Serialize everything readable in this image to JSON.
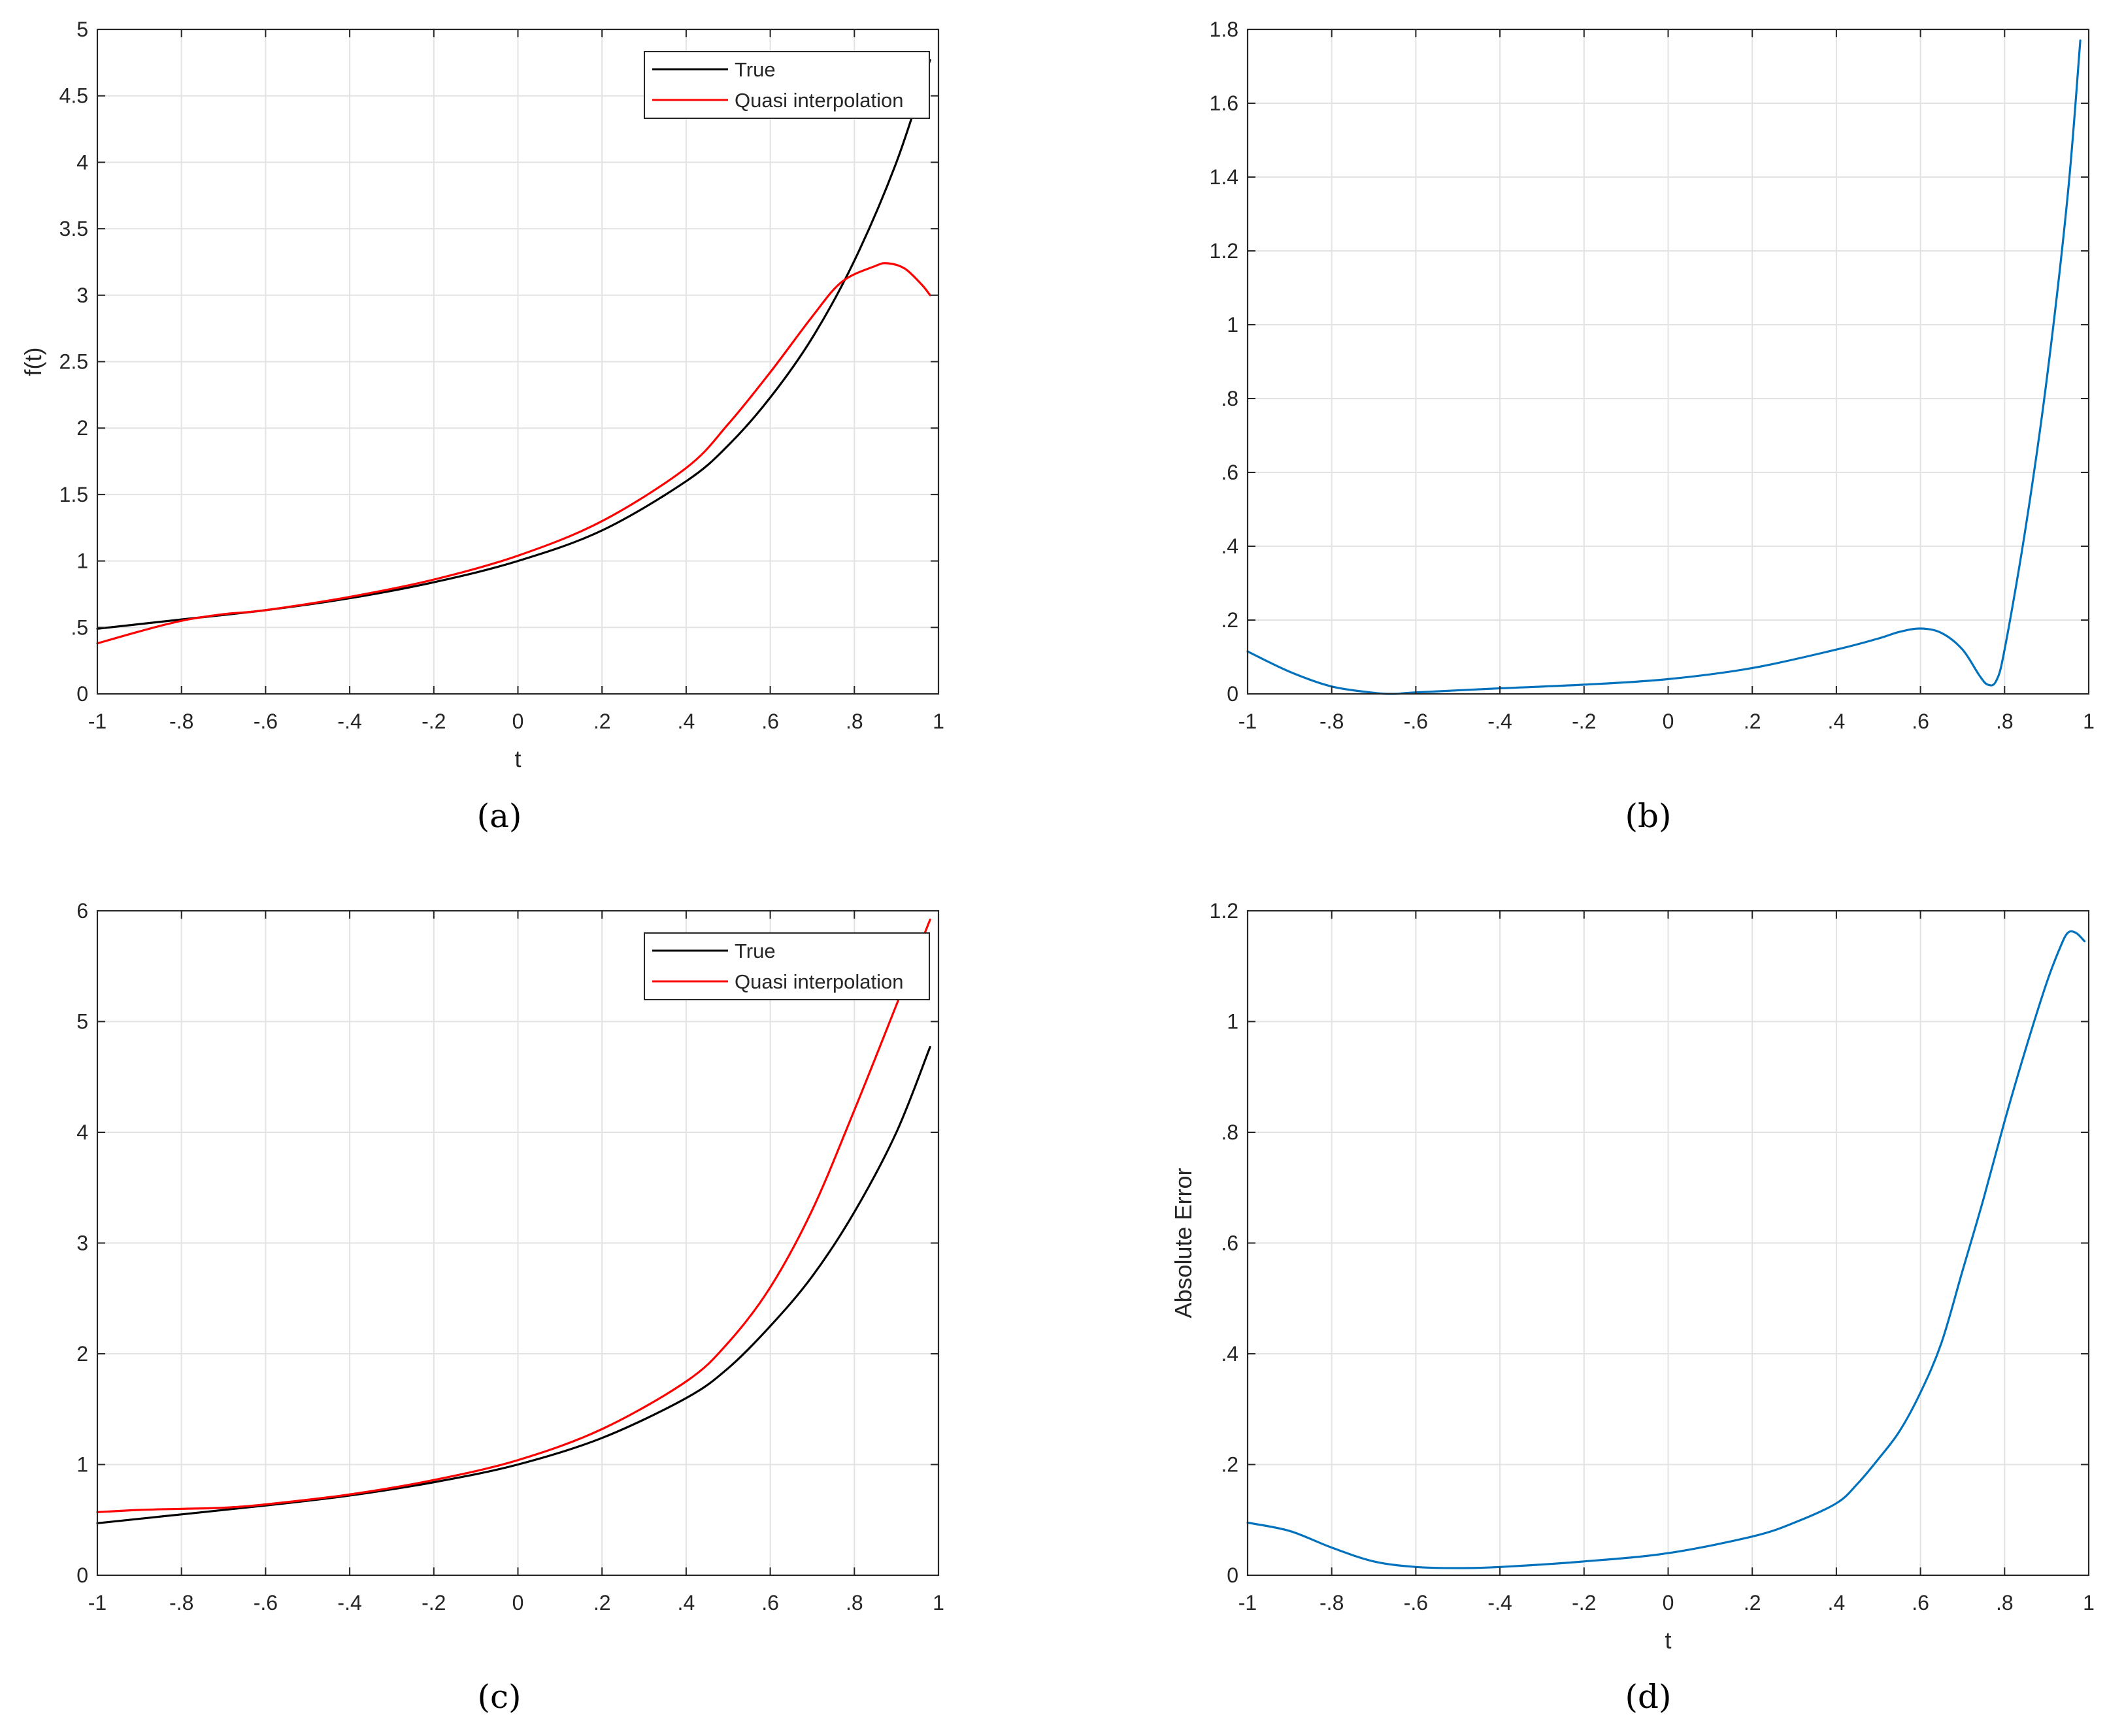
{
  "colors": {
    "true_line": "#000000",
    "quasi_line": "#ff0000",
    "error_line": "#0072bd",
    "grid": "#e3e3e3",
    "axes": "#262626"
  },
  "chart_data": [
    {
      "id": "a",
      "caption": "(a)",
      "type": "line",
      "xlabel": "t",
      "ylabel": "f(t)",
      "xlim": [
        -1,
        1
      ],
      "ylim": [
        0,
        5
      ],
      "xticks": [
        -1,
        -0.8,
        -0.6,
        -0.4,
        -0.2,
        0,
        0.2,
        0.4,
        0.6,
        0.8,
        1
      ],
      "yticks": [
        0,
        0.5,
        1,
        1.5,
        2,
        2.5,
        3,
        3.5,
        4,
        4.5,
        5
      ],
      "grid": true,
      "legend": "top-right",
      "series": [
        {
          "name": "True",
          "x": [
            -1,
            -0.8,
            -0.6,
            -0.4,
            -0.2,
            0,
            0.2,
            0.4,
            0.5,
            0.6,
            0.7,
            0.8,
            0.9,
            0.98
          ],
          "y": [
            0.49,
            0.56,
            0.63,
            0.72,
            0.84,
            1.0,
            1.23,
            1.6,
            1.87,
            2.23,
            2.68,
            3.26,
            4.0,
            4.77
          ]
        },
        {
          "name": "Quasi interpolation",
          "x": [
            -1,
            -0.9,
            -0.8,
            -0.7,
            -0.6,
            -0.4,
            -0.2,
            0,
            0.2,
            0.4,
            0.5,
            0.6,
            0.7,
            0.77,
            0.85,
            0.88,
            0.92,
            0.96,
            0.98
          ],
          "y": [
            0.38,
            0.47,
            0.55,
            0.6,
            0.63,
            0.73,
            0.86,
            1.04,
            1.3,
            1.7,
            2.03,
            2.42,
            2.84,
            3.1,
            3.22,
            3.24,
            3.2,
            3.08,
            3.0
          ]
        }
      ]
    },
    {
      "id": "b",
      "caption": "(b)",
      "type": "line",
      "xlabel": "",
      "ylabel": "",
      "xlim": [
        -1,
        1
      ],
      "ylim": [
        0,
        1.8
      ],
      "xticks": [
        -1,
        -0.8,
        -0.6,
        -0.4,
        -0.2,
        0,
        0.2,
        0.4,
        0.6,
        0.8,
        1
      ],
      "yticks": [
        0,
        0.2,
        0.4,
        0.6,
        0.8,
        1,
        1.2,
        1.4,
        1.6,
        1.8
      ],
      "grid": true,
      "legend": "none",
      "series": [
        {
          "x": [
            -1,
            -0.9,
            -0.8,
            -0.7,
            -0.65,
            -0.6,
            -0.4,
            -0.2,
            0,
            0.2,
            0.4,
            0.5,
            0.55,
            0.6,
            0.65,
            0.7,
            0.74,
            0.76,
            0.78,
            0.8,
            0.85,
            0.9,
            0.95,
            0.98
          ],
          "y": [
            0.115,
            0.06,
            0.02,
            0.003,
            0.0,
            0.004,
            0.015,
            0.025,
            0.04,
            0.07,
            0.12,
            0.15,
            0.168,
            0.177,
            0.165,
            0.12,
            0.05,
            0.025,
            0.035,
            0.12,
            0.45,
            0.85,
            1.35,
            1.77
          ]
        }
      ]
    },
    {
      "id": "c",
      "caption": "(c)",
      "type": "line",
      "xlabel": "",
      "ylabel": "",
      "xlim": [
        -1,
        1
      ],
      "ylim": [
        0,
        6
      ],
      "xticks": [
        -1,
        -0.8,
        -0.6,
        -0.4,
        -0.2,
        0,
        0.2,
        0.4,
        0.6,
        0.8,
        1
      ],
      "yticks": [
        0,
        1,
        2,
        3,
        4,
        5,
        6
      ],
      "grid": true,
      "legend": "top-right",
      "series": [
        {
          "name": "True",
          "x": [
            -1,
            -0.8,
            -0.6,
            -0.4,
            -0.2,
            0,
            0.2,
            0.4,
            0.5,
            0.6,
            0.7,
            0.8,
            0.9,
            0.98
          ],
          "y": [
            0.47,
            0.55,
            0.63,
            0.72,
            0.84,
            1.0,
            1.24,
            1.6,
            1.87,
            2.25,
            2.7,
            3.28,
            4.0,
            4.77
          ]
        },
        {
          "name": "Quasi interpolation",
          "x": [
            -1,
            -0.9,
            -0.8,
            -0.7,
            -0.6,
            -0.4,
            -0.2,
            0,
            0.2,
            0.4,
            0.5,
            0.6,
            0.7,
            0.8,
            0.9,
            0.98
          ],
          "y": [
            0.57,
            0.59,
            0.6,
            0.61,
            0.64,
            0.73,
            0.86,
            1.04,
            1.32,
            1.75,
            2.1,
            2.6,
            3.3,
            4.2,
            5.15,
            5.92
          ]
        }
      ]
    },
    {
      "id": "d",
      "caption": "(d)",
      "type": "line",
      "xlabel": "t",
      "ylabel": "Absolute Error",
      "xlim": [
        -1,
        1
      ],
      "ylim": [
        0,
        1.2
      ],
      "xticks": [
        -1,
        -0.8,
        -0.6,
        -0.4,
        -0.2,
        0,
        0.2,
        0.4,
        0.6,
        0.8,
        1
      ],
      "yticks": [
        0,
        0.2,
        0.4,
        0.6,
        0.8,
        1,
        1.2
      ],
      "grid": true,
      "legend": "none",
      "series": [
        {
          "x": [
            -1,
            -0.9,
            -0.8,
            -0.7,
            -0.6,
            -0.5,
            -0.4,
            -0.2,
            0,
            0.2,
            0.3,
            0.4,
            0.45,
            0.5,
            0.55,
            0.6,
            0.65,
            0.7,
            0.75,
            0.8,
            0.85,
            0.9,
            0.93,
            0.95,
            0.97,
            0.99
          ],
          "y": [
            0.095,
            0.08,
            0.05,
            0.025,
            0.015,
            0.013,
            0.015,
            0.025,
            0.04,
            0.07,
            0.095,
            0.13,
            0.165,
            0.21,
            0.26,
            0.33,
            0.42,
            0.55,
            0.68,
            0.82,
            0.95,
            1.07,
            1.13,
            1.16,
            1.16,
            1.145
          ]
        }
      ]
    }
  ]
}
